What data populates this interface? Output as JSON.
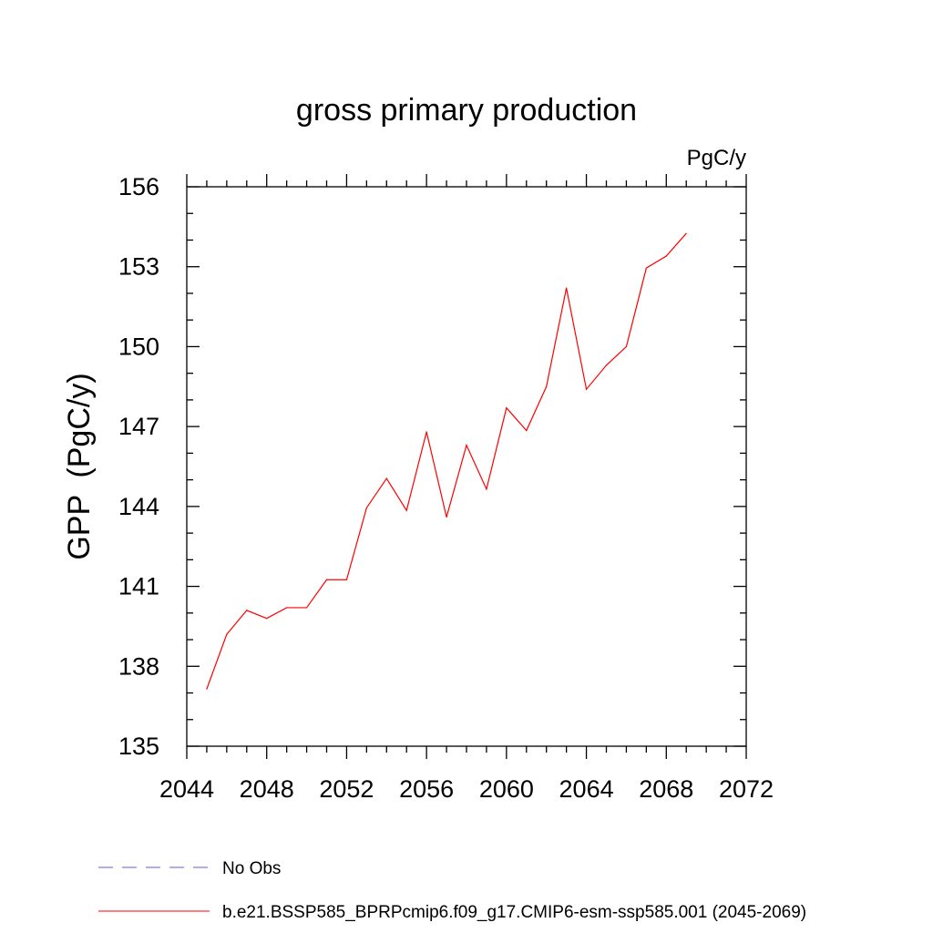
{
  "chart_data": {
    "type": "line",
    "title": "gross primary production",
    "units_label": "PgC/y",
    "ylabel": "GPP  (PgC/y)",
    "xlabel": "",
    "xlim": [
      2044,
      2072
    ],
    "ylim": [
      135,
      156
    ],
    "xticks": [
      2044,
      2048,
      2052,
      2056,
      2060,
      2064,
      2068,
      2072
    ],
    "yticks": [
      135,
      138,
      141,
      144,
      147,
      150,
      153,
      156
    ],
    "xtick_labels": [
      "2044",
      "2048",
      "2052",
      "2056",
      "2060",
      "2064",
      "2068",
      "2072"
    ],
    "ytick_labels": [
      "135",
      "138",
      "141",
      "144",
      "147",
      "150",
      "153",
      "156"
    ],
    "grid": false,
    "legend_position": "bottom",
    "series": [
      {
        "name": "b.e21.BSSP585_BPRPcmip6.f09_g17.CMIP6-esm-ssp585.001 (2045-2069)",
        "color": "#ff0000",
        "x": [
          2045,
          2046,
          2047,
          2048,
          2049,
          2050,
          2051,
          2052,
          2053,
          2054,
          2055,
          2056,
          2057,
          2058,
          2059,
          2060,
          2061,
          2062,
          2063,
          2064,
          2065,
          2066,
          2067,
          2068,
          2069
        ],
        "values": [
          137.15,
          139.2,
          140.1,
          139.8,
          140.2,
          140.2,
          141.25,
          141.25,
          143.95,
          145.05,
          143.85,
          146.8,
          143.6,
          146.3,
          144.65,
          147.7,
          146.85,
          148.5,
          152.2,
          148.4,
          149.3,
          150.0,
          152.95,
          153.4,
          154.25
        ]
      }
    ],
    "legend": [
      {
        "label": "No Obs",
        "color": "#6a5acd",
        "style": "dashed"
      },
      {
        "label": "b.e21.BSSP585_BPRPcmip6.f09_g17.CMIP6-esm-ssp585.001 (2045-2069)",
        "color": "#ff0000",
        "style": "solid"
      }
    ]
  }
}
